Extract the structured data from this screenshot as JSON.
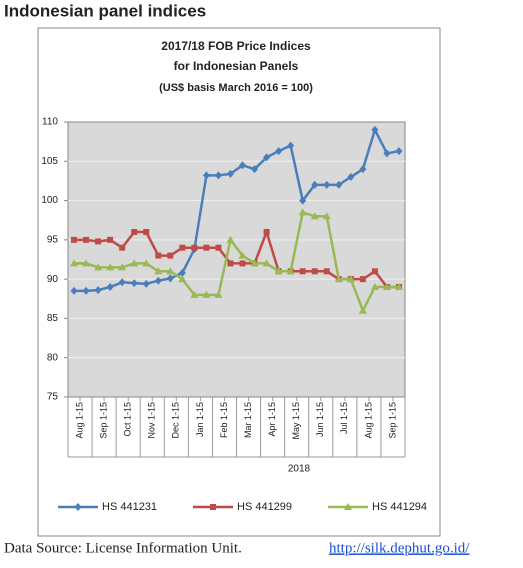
{
  "page_title": "Indonesian panel indices",
  "source": {
    "text": "Data Source: License Information Unit.",
    "link": "http://silk.dephut.go.id/"
  },
  "chart_data": {
    "type": "line",
    "title": [
      "2017/18 FOB Price Indices",
      "for Indonesian Panels",
      "(US$ basis March 2016 = 100)"
    ],
    "categories": [
      "Aug 1-15",
      null,
      "Sep 1-15",
      null,
      "Oct 1-15",
      null,
      "Nov 1-15",
      null,
      "Dec 1-15",
      null,
      "Jan 1-15",
      null,
      "Feb 1-15",
      null,
      "Mar 1-15",
      null,
      "Apr 1-15",
      null,
      "May 1-15",
      null,
      "Jun 1-15",
      null,
      "Jul 1-15",
      null,
      "Aug 1-15",
      null,
      "Sep 1-15",
      null
    ],
    "x_group_label": "2018",
    "series": [
      {
        "name": "HS 441231",
        "color": "#4a7ebb",
        "marker": "diamond",
        "values": [
          88.5,
          88.5,
          88.6,
          89,
          89.6,
          89.5,
          89.4,
          89.8,
          90.1,
          90.8,
          93.8,
          103.2,
          103.2,
          103.4,
          104.5,
          104,
          105.5,
          106.3,
          107,
          100,
          102,
          102,
          102,
          103,
          104,
          109,
          106,
          106.3
        ]
      },
      {
        "name": "HS 441299",
        "color": "#be4b48",
        "marker": "square",
        "values": [
          95,
          95,
          94.8,
          95,
          94,
          96,
          96,
          93,
          93,
          94,
          94,
          94,
          94,
          92,
          92,
          92,
          96,
          91,
          91,
          91,
          91,
          91,
          90,
          90,
          90,
          91,
          89,
          89
        ]
      },
      {
        "name": "HS 441294",
        "color": "#98b954",
        "marker": "triangle",
        "values": [
          92,
          92,
          91.5,
          91.5,
          91.5,
          92,
          92,
          91,
          91,
          90,
          88,
          88,
          88,
          95,
          93,
          92,
          92,
          91,
          91,
          98.5,
          98,
          98,
          90,
          90,
          86,
          89,
          89,
          89
        ]
      }
    ],
    "ylim": [
      75,
      110
    ],
    "yticks": [
      75,
      80,
      85,
      90,
      95,
      100,
      105,
      110
    ],
    "grid": true,
    "legend": "bottom"
  }
}
